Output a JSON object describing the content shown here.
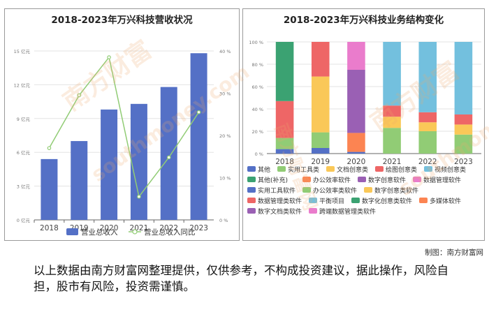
{
  "left_title": "2018-2023年万兴科技营收状况",
  "right_title": "2018-2023年万兴科技业务结构变化",
  "credit": "制图：南方财富网",
  "disclaimer": "以上数据由南方财富网整理提供，仅供参考，不构成投资建议，据此操作，风险自担，股市有风险，投资需谨慎。",
  "watermark": {
    "logo_text": "南方财富",
    "url_text": "southmoney.com",
    "side_text": "南方财富网"
  },
  "chart_data": [
    {
      "type": "bar",
      "title": "2018-2023年万兴科技营收状况",
      "categories": [
        "2018",
        "2019",
        "2020",
        "2021",
        "2022",
        "2023"
      ],
      "series": [
        {
          "name": "营业总收入",
          "type": "bar",
          "axis": "left",
          "color": "#5470c6",
          "values": [
            5.4,
            7.0,
            9.8,
            10.3,
            11.8,
            14.8
          ]
        },
        {
          "name": "营业总收入同比",
          "type": "line",
          "axis": "right",
          "color": "#91cc75",
          "values": [
            17.0,
            29.5,
            38.5,
            5.5,
            14.8,
            25.5
          ]
        }
      ],
      "y_left": {
        "ylim": [
          0,
          15
        ],
        "ticks": [
          0,
          3,
          6,
          9,
          12,
          15
        ],
        "tick_labels": [
          "0 亿元",
          "3 亿元",
          "6 亿元",
          "9 亿元",
          "12 亿元",
          "15 亿元"
        ]
      },
      "y_right": {
        "ylim": [
          0,
          40
        ],
        "ticks": [
          0,
          10,
          20,
          30,
          40
        ],
        "tick_labels": [
          "0 %",
          "10 %",
          "20 %",
          "30 %",
          "40 %"
        ]
      },
      "grid": true,
      "legend": "bottom"
    },
    {
      "type": "bar",
      "stacked": true,
      "title": "2018-2023年万兴科技业务结构变化",
      "categories": [
        "2018",
        "2019",
        "2020",
        "2021",
        "2022",
        "2023"
      ],
      "y": {
        "ylim": [
          0,
          100
        ],
        "ticks": [
          0,
          20,
          40,
          60,
          80,
          100
        ],
        "tick_labels": [
          "0 %",
          "20 %",
          "40 %",
          "60 %",
          "80 %",
          "100 %"
        ]
      },
      "grid": true,
      "legend": "bottom",
      "legend_entries": [
        {
          "name": "其他",
          "color": "#5470c6"
        },
        {
          "name": "实用工具类",
          "color": "#91cc75"
        },
        {
          "name": "文档创意类",
          "color": "#fac858"
        },
        {
          "name": "绘图创意类",
          "color": "#ee6666"
        },
        {
          "name": "视频创意类",
          "color": "#73c0de"
        },
        {
          "name": "其他(补充)",
          "color": "#3ba272"
        },
        {
          "name": "办公效率软件",
          "color": "#fc8452"
        },
        {
          "name": "数字创意软件",
          "color": "#9a60b4"
        },
        {
          "name": "数据管理软件",
          "color": "#ea7ccc"
        },
        {
          "name": "实用工具软件",
          "color": "#5470c6"
        },
        {
          "name": "办公效率类软件",
          "color": "#91cc75"
        },
        {
          "name": "数字创意类软件",
          "color": "#fac858"
        },
        {
          "name": "数据管理类软件",
          "color": "#ee6666"
        },
        {
          "name": "平衡项目",
          "color": "#73c0de"
        },
        {
          "name": "数字化创意类软件",
          "color": "#3ba272"
        },
        {
          "name": "多媒体软件",
          "color": "#fc8452"
        },
        {
          "name": "数字文档类软件",
          "color": "#9a60b4"
        },
        {
          "name": "跨端数据管理类软件",
          "color": "#ea7ccc"
        }
      ],
      "series": [
        {
          "name": "其他",
          "color": "#5470c6",
          "values": [
            4,
            5,
            1.5,
            0,
            0,
            0
          ]
        },
        {
          "name": "实用工具类",
          "color": "#91cc75",
          "values": [
            10,
            14,
            0,
            23,
            20,
            17
          ]
        },
        {
          "name": "文档创意类",
          "color": "#fac858",
          "values": [
            0,
            50,
            0,
            10,
            8,
            9
          ]
        },
        {
          "name": "绘图创意类",
          "color": "#ee6666",
          "values": [
            33,
            31,
            0,
            10,
            9,
            9
          ]
        },
        {
          "name": "视频创意类",
          "color": "#73c0de",
          "values": [
            0,
            0,
            0,
            57,
            63,
            65
          ]
        },
        {
          "name": "其他(补充)",
          "color": "#3ba272",
          "values": [
            53,
            0,
            0,
            0,
            0,
            0
          ]
        },
        {
          "name": "办公效率软件",
          "color": "#fc8452",
          "values": [
            0,
            0,
            17,
            0,
            0,
            0
          ]
        },
        {
          "name": "数字创意软件",
          "color": "#9a60b4",
          "values": [
            0,
            0,
            56.5,
            0,
            0,
            0
          ]
        },
        {
          "name": "数据管理软件",
          "color": "#ea7ccc",
          "values": [
            0,
            0,
            25,
            0,
            0,
            0
          ]
        }
      ]
    }
  ]
}
